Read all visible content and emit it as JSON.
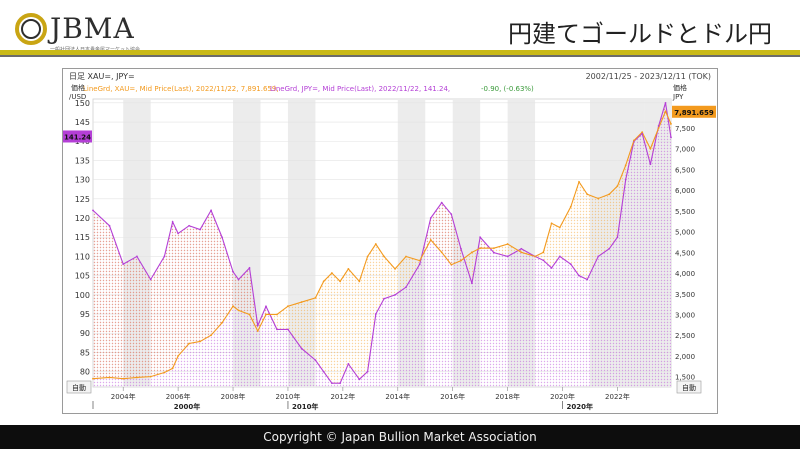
{
  "header": {
    "logo_text": "JBMA",
    "logo_sub": "一般社団法人日本貴金属マーケット協会",
    "title": "円建てゴールドとドル円"
  },
  "footer": {
    "copyright": "Copyright © Japan Bullion Market Association"
  },
  "colors": {
    "gold": "#f39a1e",
    "yen": "#b43fd6",
    "accent_rule": "#c9b917",
    "shade": "#ececec"
  },
  "chart_data": {
    "type": "line",
    "title": "日足 XAU=, JPY=",
    "date_range": "2002/11/25 - 2023/12/11 (TOK)",
    "legend": {
      "gold_text": "LineGrd, XAU=, Mid Price(Last), 2022/11/22, 7,891.659,",
      "yen_text": "LineGrd, JPY=, Mid Price(Last), 2022/11/22, 141.24,",
      "change_text": "-0.90, (-0.63%)"
    },
    "left_axis": {
      "label_line1": "価格",
      "label_line2": "/USD",
      "ticks": [
        80,
        85,
        90,
        95,
        100,
        105,
        110,
        115,
        120,
        125,
        130,
        135,
        140,
        145,
        150
      ],
      "ylim": [
        76,
        151
      ],
      "current_tag": "141.24",
      "auto_label": "自動"
    },
    "right_axis": {
      "label_line1": "価格",
      "label_line2": "JPY",
      "ticks": [
        1500,
        2000,
        2500,
        3000,
        3500,
        4000,
        4500,
        5000,
        5500,
        6000,
        6500,
        7000,
        7500
      ],
      "tick_labels": [
        "1,500",
        "2,000",
        "2,500",
        "3,000",
        "3,500",
        "4,000",
        "4,500",
        "5,000",
        "5,500",
        "6,000",
        "6,500",
        "7,000",
        "7,500"
      ],
      "ylim": [
        1250,
        8200
      ],
      "current_tag": "7,891.659",
      "auto_label": "自動"
    },
    "x_axis": {
      "xlim": [
        2002.9,
        2023.95
      ],
      "year_ticks": [
        2004,
        2006,
        2008,
        2010,
        2012,
        2014,
        2016,
        2018,
        2020,
        2022
      ],
      "year_labels": [
        "2004年",
        "2006年",
        "2008年",
        "2010年",
        "2012年",
        "2014年",
        "2016年",
        "2018年",
        "2020年",
        "2022年"
      ],
      "decade_labels": [
        {
          "x": 2002.9,
          "label": "2000年"
        },
        {
          "x": 2010,
          "label": "2010年"
        },
        {
          "x": 2020,
          "label": "2020年"
        }
      ]
    },
    "shaded_years": [
      2004,
      2008,
      2010,
      2014,
      2016,
      2018,
      2021,
      2022,
      2023
    ],
    "series": [
      {
        "name": "XAU=",
        "axis": "right",
        "x": [
          2002.9,
          2003.5,
          2004.0,
          2004.5,
          2005.0,
          2005.5,
          2005.8,
          2006.0,
          2006.4,
          2006.8,
          2007.2,
          2007.6,
          2008.0,
          2008.2,
          2008.6,
          2008.9,
          2009.2,
          2009.6,
          2010.0,
          2010.5,
          2011.0,
          2011.3,
          2011.6,
          2011.9,
          2012.2,
          2012.6,
          2012.9,
          2013.2,
          2013.5,
          2013.9,
          2014.3,
          2014.8,
          2015.2,
          2015.6,
          2015.95,
          2016.3,
          2016.7,
          2017.0,
          2017.5,
          2018.0,
          2018.5,
          2019.0,
          2019.3,
          2019.6,
          2019.9,
          2020.3,
          2020.6,
          2020.9,
          2021.3,
          2021.7,
          2022.0,
          2022.3,
          2022.6,
          2022.9,
          2023.2,
          2023.5,
          2023.75,
          2023.95
        ],
        "values": [
          1450,
          1480,
          1450,
          1480,
          1500,
          1600,
          1700,
          2000,
          2300,
          2350,
          2500,
          2800,
          3200,
          3100,
          3000,
          2600,
          3000,
          3000,
          3200,
          3300,
          3400,
          3800,
          4000,
          3800,
          4100,
          3800,
          4400,
          4700,
          4400,
          4100,
          4400,
          4300,
          4800,
          4500,
          4200,
          4300,
          4500,
          4600,
          4600,
          4700,
          4500,
          4400,
          4500,
          5200,
          5100,
          5600,
          6200,
          5900,
          5800,
          5900,
          6100,
          6600,
          7200,
          7400,
          7000,
          7500,
          7900,
          7600
        ]
      },
      {
        "name": "JPY=",
        "axis": "left",
        "x": [
          2002.9,
          2003.5,
          2004.0,
          2004.5,
          2005.0,
          2005.5,
          2005.8,
          2006.0,
          2006.4,
          2006.8,
          2007.2,
          2007.6,
          2008.0,
          2008.2,
          2008.6,
          2008.9,
          2009.2,
          2009.6,
          2010.0,
          2010.5,
          2011.0,
          2011.3,
          2011.6,
          2011.9,
          2012.2,
          2012.6,
          2012.9,
          2013.2,
          2013.5,
          2013.9,
          2014.3,
          2014.8,
          2015.2,
          2015.6,
          2015.95,
          2016.3,
          2016.7,
          2017.0,
          2017.5,
          2018.0,
          2018.5,
          2019.0,
          2019.3,
          2019.6,
          2019.9,
          2020.3,
          2020.6,
          2020.9,
          2021.3,
          2021.7,
          2022.0,
          2022.3,
          2022.6,
          2022.9,
          2023.2,
          2023.5,
          2023.75,
          2023.95
        ],
        "values": [
          122,
          118,
          108,
          110,
          104,
          110,
          119,
          116,
          118,
          117,
          122,
          115,
          106,
          104,
          107,
          92,
          97,
          91,
          91,
          86,
          83,
          80,
          77,
          77,
          82,
          78,
          80,
          95,
          99,
          100,
          102,
          108,
          120,
          124,
          121,
          112,
          103,
          115,
          111,
          110,
          112,
          110,
          109,
          107,
          110,
          108,
          105,
          104,
          110,
          112,
          115,
          130,
          140,
          142,
          134,
          144,
          150,
          141
        ]
      }
    ]
  }
}
